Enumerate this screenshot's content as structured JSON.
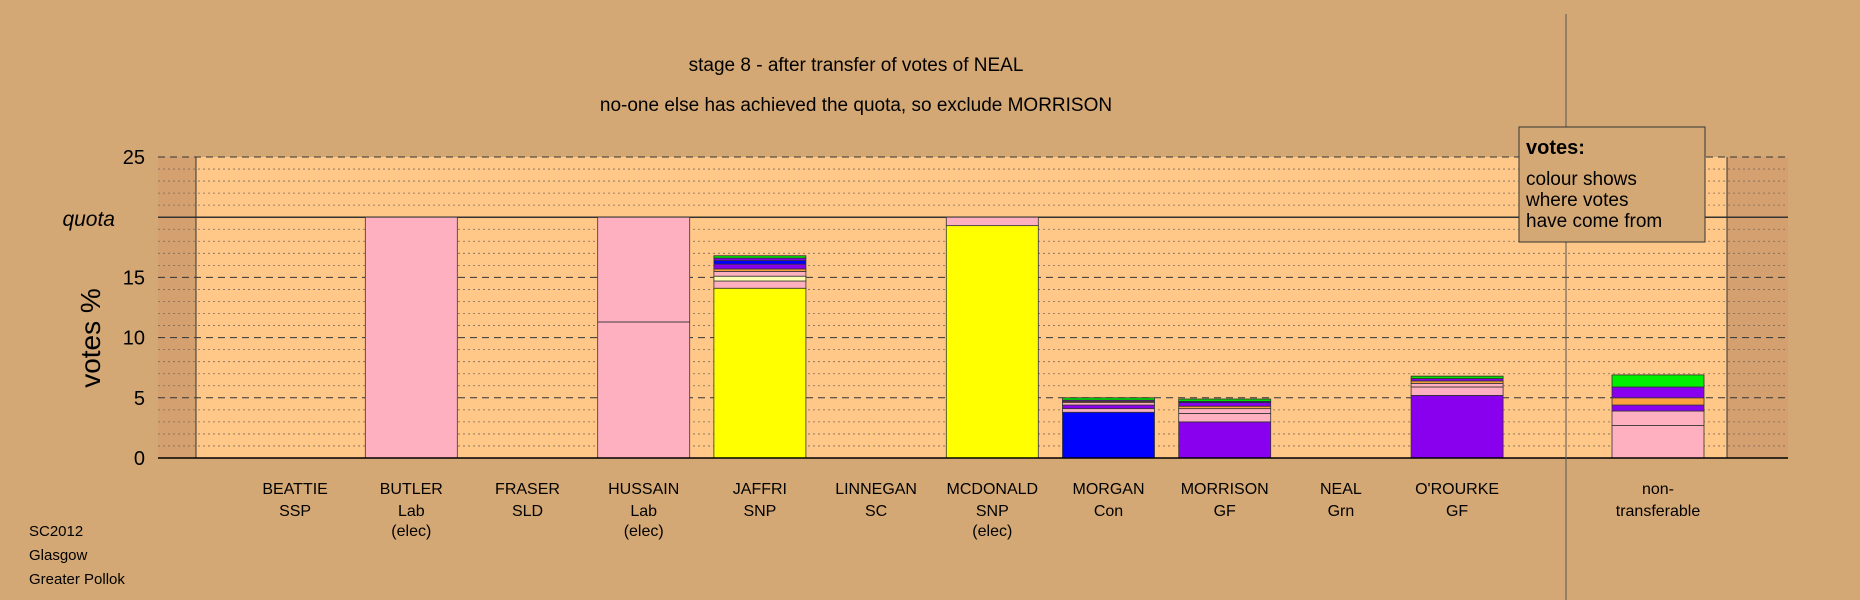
{
  "chart_data": {
    "type": "bar",
    "title": "stage 8 - after transfer of votes of NEAL",
    "subtitle": "no-one else has achieved the quota, so exclude MORRISON",
    "ylabel": "votes %",
    "ylim": [
      0,
      25
    ],
    "yticks": [
      0,
      5,
      10,
      15,
      20,
      25
    ],
    "quota": 20,
    "quota_label": "quota",
    "grid": true,
    "candidates": [
      {
        "name": "BEATTIE",
        "party": "SSP",
        "note": "",
        "segments": []
      },
      {
        "name": "BUTLER",
        "party": "Lab",
        "note": "(elec)",
        "segments": [
          {
            "color": "#ffb0c0",
            "value": 20.0
          }
        ]
      },
      {
        "name": "FRASER",
        "party": "SLD",
        "note": "",
        "segments": []
      },
      {
        "name": "HUSSAIN",
        "party": "Lab",
        "note": "(elec)",
        "segments": [
          {
            "color": "#ffb0c0",
            "value": 11.3
          },
          {
            "color": "#ffb0c0",
            "value": 8.7
          }
        ]
      },
      {
        "name": "JAFFRI",
        "party": "SNP",
        "note": "",
        "segments": [
          {
            "color": "#ffff00",
            "value": 14.1
          },
          {
            "color": "#ffb0c0",
            "value": 0.6
          },
          {
            "color": "#ffffb0",
            "value": 0.4
          },
          {
            "color": "#ffb0c0",
            "value": 0.4
          },
          {
            "color": "#ffa040",
            "value": 0.2
          },
          {
            "color": "#8800ee",
            "value": 0.4
          },
          {
            "color": "#0000ff",
            "value": 0.3
          },
          {
            "color": "#8800ee",
            "value": 0.2
          },
          {
            "color": "#00dd00",
            "value": 0.2
          }
        ]
      },
      {
        "name": "LINNEGAN",
        "party": "SC",
        "note": "",
        "segments": []
      },
      {
        "name": "MCDONALD",
        "party": "SNP",
        "note": "(elec)",
        "segments": [
          {
            "color": "#ffff00",
            "value": 19.3
          },
          {
            "color": "#ffb0c0",
            "value": 0.7
          }
        ]
      },
      {
        "name": "MORGAN",
        "party": "Con",
        "note": "",
        "segments": [
          {
            "color": "#0000ff",
            "value": 3.8
          },
          {
            "color": "#ffb0c0",
            "value": 0.3
          },
          {
            "color": "#8800ee",
            "value": 0.3
          },
          {
            "color": "#ffb0c0",
            "value": 0.2
          },
          {
            "color": "#ffa040",
            "value": 0.1
          },
          {
            "color": "#8800ee",
            "value": 0.1
          },
          {
            "color": "#00dd00",
            "value": 0.2
          }
        ]
      },
      {
        "name": "MORRISON",
        "party": "GF",
        "note": "",
        "segments": [
          {
            "color": "#8800ee",
            "value": 3.0
          },
          {
            "color": "#ffb0c0",
            "value": 0.7
          },
          {
            "color": "#ffb0c0",
            "value": 0.4
          },
          {
            "color": "#ffa040",
            "value": 0.2
          },
          {
            "color": "#8800ee",
            "value": 0.3
          },
          {
            "color": "#0000ff",
            "value": 0.1
          },
          {
            "color": "#00dd00",
            "value": 0.2
          }
        ]
      },
      {
        "name": "NEAL",
        "party": "Grn",
        "note": "",
        "segments": []
      },
      {
        "name": "O'ROURKE",
        "party": "GF",
        "note": "",
        "segments": [
          {
            "color": "#8800ee",
            "value": 5.2
          },
          {
            "color": "#ffb0c0",
            "value": 0.7
          },
          {
            "color": "#ffb0c0",
            "value": 0.3
          },
          {
            "color": "#ffa040",
            "value": 0.2
          },
          {
            "color": "#8800ee",
            "value": 0.2
          },
          {
            "color": "#00dd00",
            "value": 0.2
          }
        ]
      }
    ],
    "nontransferable": {
      "label_line1": "non-",
      "label_line2": "transferable",
      "segments": [
        {
          "color": "#ffb0c0",
          "value": 2.7
        },
        {
          "color": "#ffb0c0",
          "value": 1.2
        },
        {
          "color": "#8800ee",
          "value": 0.5
        },
        {
          "color": "#ffa040",
          "value": 0.6
        },
        {
          "color": "#8800ee",
          "value": 0.9
        },
        {
          "color": "#00ee00",
          "value": 1.0
        }
      ]
    },
    "legend": {
      "title": "votes:",
      "lines": [
        "colour shows",
        "where votes",
        "have come from"
      ]
    }
  },
  "footer": {
    "line1": "SC2012",
    "line2": "Glasgow",
    "line3": "Greater Pollok"
  },
  "colors": {
    "background": "#d4a874",
    "plot": "#ffc888",
    "plot_shade": "#d4a070"
  }
}
